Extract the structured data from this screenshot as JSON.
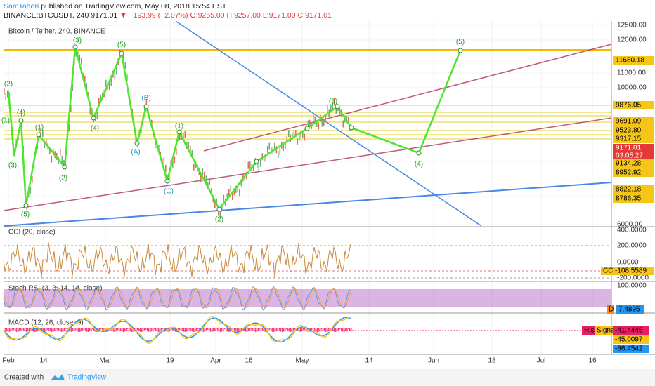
{
  "header": {
    "author": "SamTaheri",
    "published": "published on TradingView.com, May 08, 2018 15:54 EST",
    "symbol": "BINANCE:BTCUSDT, 240",
    "last": "9171.01",
    "change": "▼ −193.99 (−2.07%)",
    "ohlc": "O:9255.00 H:9257.00 L:9171.00 C:9171.01"
  },
  "main_panel": {
    "title": "Bitcoin / Tether, 240, BINANCE",
    "price_ticks": [
      "12500.00",
      "12000.00",
      "11000.00",
      "10000.00",
      "6000.00"
    ],
    "price_badges": [
      {
        "text": "11680.18",
        "color": "#f5c518"
      },
      {
        "text": "9876.05",
        "color": "#f5c518"
      },
      {
        "text": "9691.09",
        "color": "#f5c518"
      },
      {
        "text": "9523.80",
        "color": "#f5c518"
      },
      {
        "text": "9317.15",
        "color": "#f5c518"
      },
      {
        "text": "9171.01",
        "color": "#e53935"
      },
      {
        "text": "03:05:27",
        "color": "#e53935"
      },
      {
        "text": "9134.28",
        "color": "#f5c518"
      },
      {
        "text": "8952.92",
        "color": "#f5c518"
      },
      {
        "text": "8822.18",
        "color": "#f5c518"
      },
      {
        "text": "8786.35",
        "color": "#f5c518"
      }
    ],
    "wave_labels": [
      "(2)",
      "(4)",
      "(1)",
      "(3)",
      "(5)",
      "(1)",
      "(2)",
      "(3)",
      "(4)",
      "(5)",
      "(B)",
      "(A)",
      "(1)",
      "(C)",
      "(2)",
      "(3)",
      "(4)",
      "(5)"
    ]
  },
  "indicators": [
    {
      "title": "CCI (20, close)",
      "ticks": [
        "400.0000",
        "200.0000",
        "0.0000",
        "-200.0000"
      ],
      "badges": [
        {
          "text": "CCI",
          "color": "#f5c518"
        },
        {
          "text": "-108.5589",
          "color": "#f5c518"
        }
      ]
    },
    {
      "title": "Stoch RSI (3, 3, 14, 14, close)",
      "ticks": [
        "100.0000"
      ],
      "badges": [
        {
          "text": "D",
          "color": "#ff8c00"
        },
        {
          "text": "7.4895",
          "color": "#2196f3"
        }
      ]
    },
    {
      "title": "MACD (12, 26, close, 9)",
      "ticks": [],
      "badges": [
        {
          "text": "His",
          "color": "#e91e63"
        },
        {
          "text": "Signal",
          "color": "#f5c518"
        },
        {
          "text": "-41.4445",
          "color": "#e91e63"
        },
        {
          "text": "-45.0097",
          "color": "#f5c518"
        },
        {
          "text": "-86.4542",
          "color": "#2196f3"
        }
      ]
    }
  ],
  "date_labels": [
    "Feb",
    "14",
    "Mar",
    "19",
    "Apr",
    "16",
    "May",
    "14",
    "Jun",
    "18",
    "Jul",
    "16"
  ],
  "footer": {
    "created": "Created with",
    "brand": "TradingView"
  }
}
